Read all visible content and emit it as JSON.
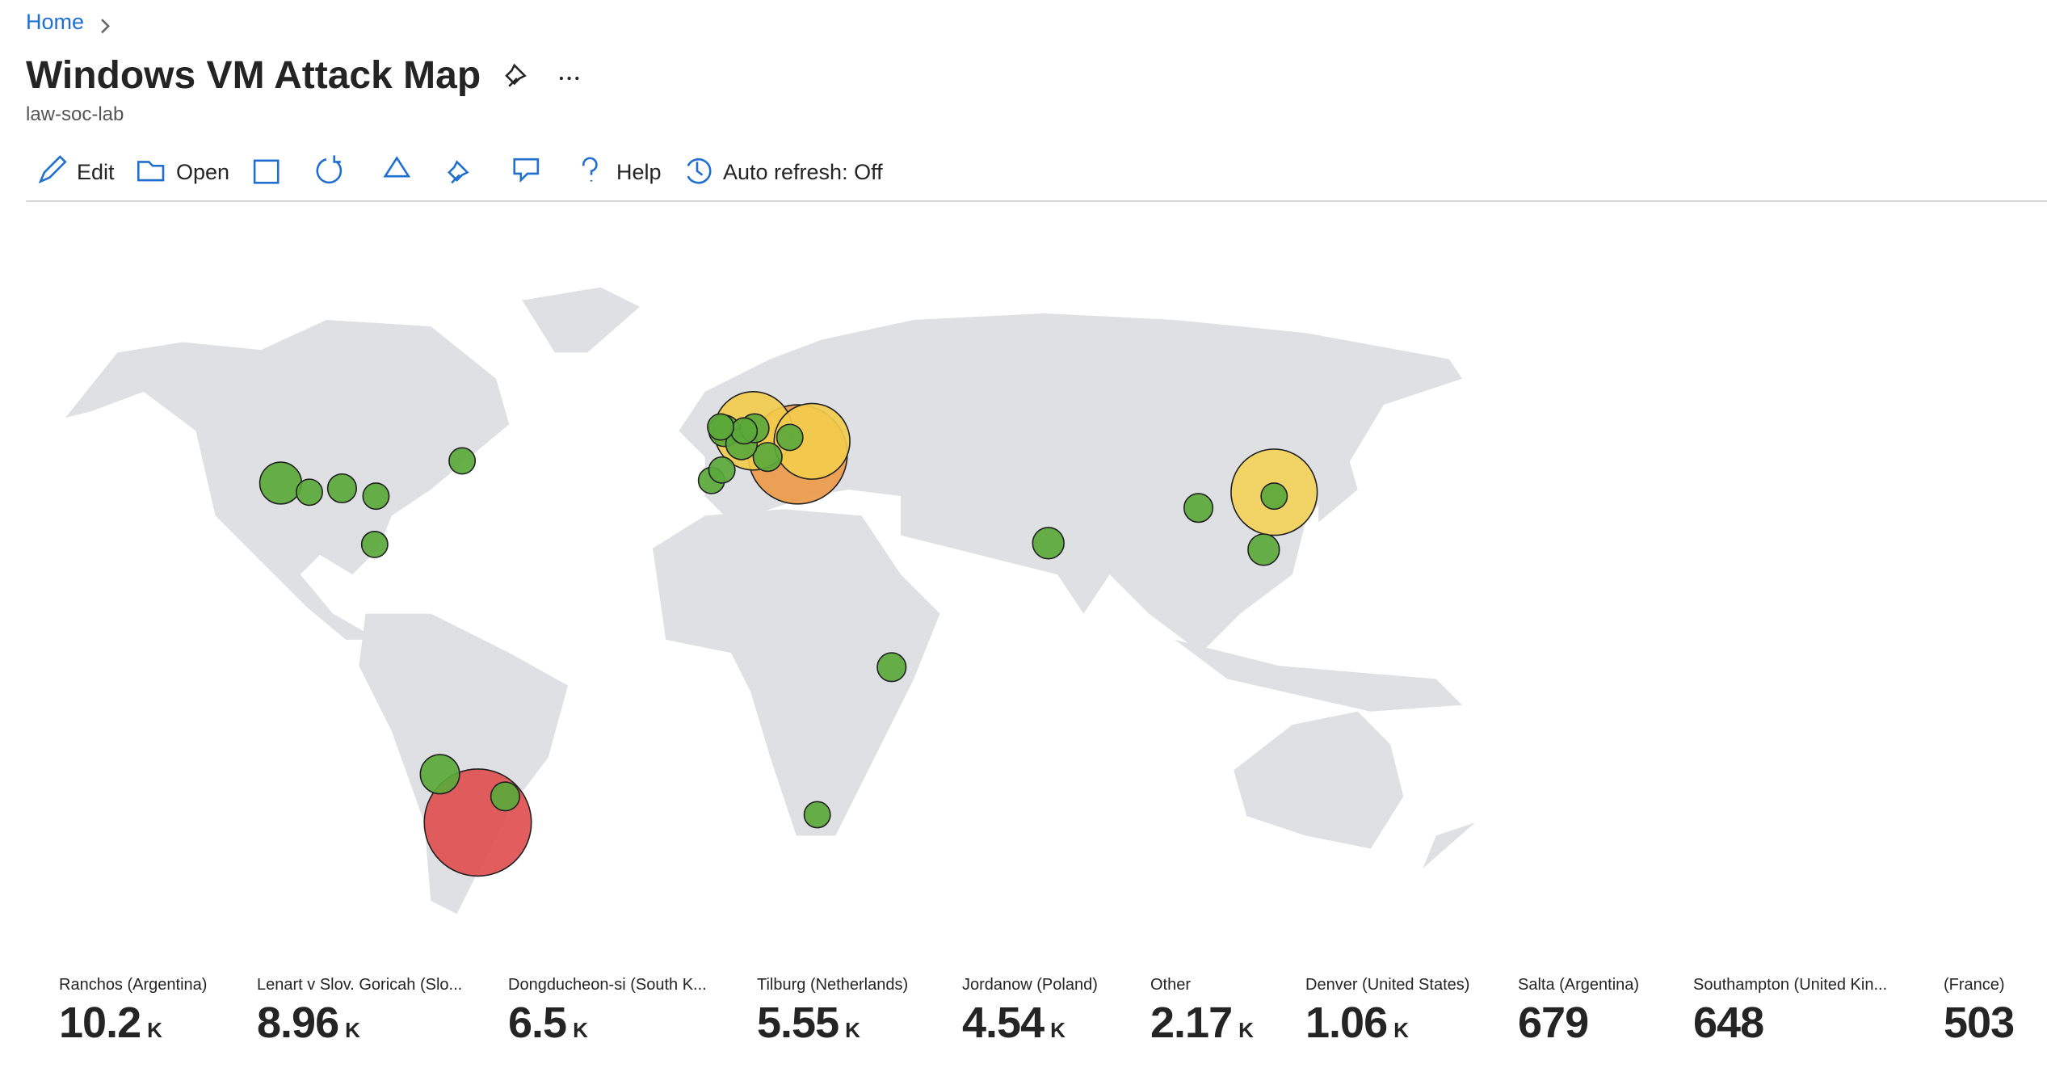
{
  "breadcrumb": {
    "home": "Home"
  },
  "header": {
    "title": "Windows VM Attack Map",
    "subtitle": "law-soc-lab"
  },
  "toolbar": {
    "items": [
      "Edit",
      "Open",
      "Help",
      "Auto refresh: Off"
    ]
  },
  "tiles": [
    {
      "label": "Ranchos (Argentina)",
      "value": "10.2",
      "unit": "K"
    },
    {
      "label": "Lenart v Slov. Goricah (Slo...",
      "value": "8.96",
      "unit": "K"
    },
    {
      "label": "Dongducheon-si (South K...",
      "value": "6.5",
      "unit": "K"
    },
    {
      "label": "Tilburg (Netherlands)",
      "value": "5.55",
      "unit": "K"
    },
    {
      "label": "Jordanow (Poland)",
      "value": "4.54",
      "unit": "K"
    },
    {
      "label": "Other",
      "value": "2.17",
      "unit": "K"
    },
    {
      "label": "Denver (United States)",
      "value": "1.06",
      "unit": "K"
    },
    {
      "label": "Salta (Argentina)",
      "value": "679"
    },
    {
      "label": "Southampton (United Kin...",
      "value": "648"
    },
    {
      "label": "(France)",
      "value": "503"
    }
  ]
}
